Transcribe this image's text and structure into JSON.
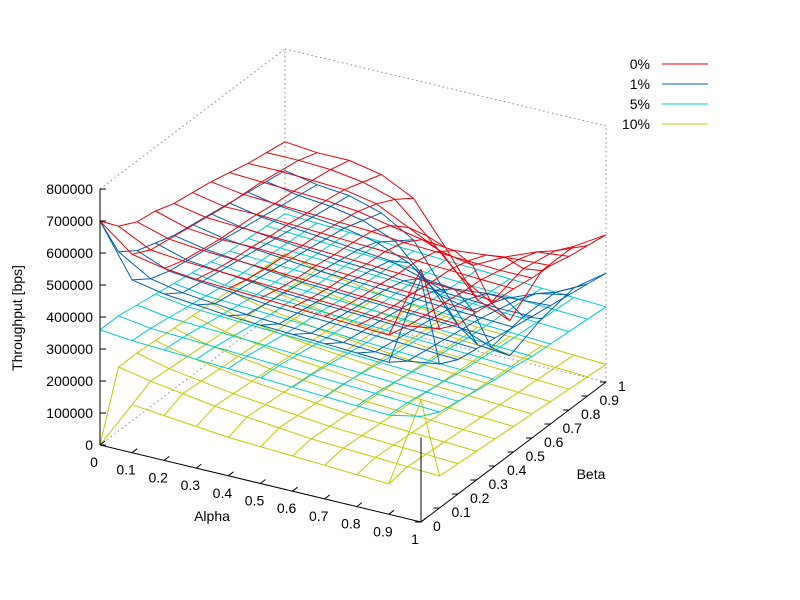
{
  "chart_data": {
    "type": "surface",
    "title": "",
    "xlabel": "Alpha",
    "ylabel": "Beta",
    "zlabel": "Throughput [bps]",
    "x_ticks": [
      "0",
      "0.1",
      "0.2",
      "0.3",
      "0.4",
      "0.5",
      "0.6",
      "0.7",
      "0.8",
      "0.9",
      "1"
    ],
    "y_ticks": [
      "0",
      "0.1",
      "0.2",
      "0.3",
      "0.4",
      "0.5",
      "0.6",
      "0.7",
      "0.8",
      "0.9",
      "1"
    ],
    "z_ticks": [
      "0",
      "100000",
      "200000",
      "300000",
      "400000",
      "500000",
      "600000",
      "700000",
      "800000"
    ],
    "xlim": [
      0,
      1
    ],
    "ylim": [
      0,
      1
    ],
    "zlim": [
      0,
      800000
    ],
    "grid": true,
    "legend_position": "top-right",
    "x": [
      0,
      0.1,
      0.2,
      0.3,
      0.4,
      0.5,
      0.6,
      0.7,
      0.8,
      0.9,
      1
    ],
    "y": [
      0,
      0.1,
      0.2,
      0.3,
      0.4,
      0.5,
      0.6,
      0.7,
      0.8,
      0.9,
      1
    ],
    "series": [
      {
        "name": "0%",
        "color": "#e8000b",
        "z_base": 560000,
        "z": [
          [
            700000,
            640000,
            610000,
            600000,
            580000,
            570000,
            560000,
            545000,
            530000,
            520000,
            510000
          ],
          [
            620000,
            590000,
            580000,
            570000,
            560000,
            550000,
            545000,
            540000,
            530000,
            520000,
            500000
          ],
          [
            600000,
            580000,
            570000,
            560000,
            555000,
            550000,
            540000,
            535000,
            525000,
            515000,
            500000
          ],
          [
            590000,
            575000,
            565000,
            560000,
            550000,
            545000,
            535000,
            530000,
            520000,
            500000,
            480000
          ],
          [
            585000,
            570000,
            560000,
            555000,
            545000,
            540000,
            530000,
            520000,
            500000,
            470000,
            430000
          ],
          [
            580000,
            565000,
            555000,
            550000,
            540000,
            535000,
            525000,
            500000,
            450000,
            380000,
            300000
          ],
          [
            575000,
            560000,
            550000,
            545000,
            535000,
            530000,
            515000,
            480000,
            400000,
            280000,
            160000
          ],
          [
            570000,
            555000,
            545000,
            540000,
            530000,
            525000,
            510000,
            470000,
            380000,
            220000,
            120000
          ],
          [
            565000,
            550000,
            540000,
            535000,
            525000,
            520000,
            505000,
            480000,
            430000,
            350000,
            300000
          ],
          [
            560000,
            545000,
            535000,
            530000,
            520000,
            515000,
            500000,
            490000,
            470000,
            430000,
            400000
          ],
          [
            790000,
            560000,
            530000,
            525000,
            515000,
            510000,
            500000,
            495000,
            480000,
            470000,
            460000
          ]
        ]
      },
      {
        "name": "1%",
        "color": "#0060ad",
        "z": [
          [
            700000,
            560000,
            520000,
            500000,
            480000,
            470000,
            460000,
            450000,
            440000,
            430000,
            420000
          ],
          [
            540000,
            500000,
            480000,
            470000,
            460000,
            450000,
            440000,
            430000,
            420000,
            410000,
            400000
          ],
          [
            520000,
            480000,
            470000,
            460000,
            450000,
            440000,
            430000,
            420000,
            410000,
            400000,
            390000
          ],
          [
            510000,
            470000,
            460000,
            450000,
            440000,
            430000,
            420000,
            410000,
            400000,
            380000,
            360000
          ],
          [
            500000,
            460000,
            450000,
            440000,
            430000,
            420000,
            410000,
            400000,
            380000,
            340000,
            300000
          ],
          [
            495000,
            455000,
            445000,
            435000,
            425000,
            415000,
            405000,
            390000,
            340000,
            240000,
            160000
          ],
          [
            490000,
            450000,
            440000,
            430000,
            420000,
            410000,
            395000,
            360000,
            260000,
            120000,
            20000
          ],
          [
            485000,
            445000,
            435000,
            425000,
            415000,
            405000,
            390000,
            350000,
            240000,
            80000,
            10000
          ],
          [
            480000,
            440000,
            430000,
            420000,
            410000,
            400000,
            385000,
            360000,
            300000,
            200000,
            150000
          ],
          [
            475000,
            435000,
            425000,
            415000,
            405000,
            395000,
            380000,
            365000,
            340000,
            300000,
            270000
          ],
          [
            760000,
            450000,
            420000,
            410000,
            400000,
            390000,
            380000,
            370000,
            360000,
            350000,
            340000
          ]
        ]
      },
      {
        "name": "5%",
        "color": "#00cccc",
        "z": [
          [
            360000,
            360000,
            350000,
            340000,
            330000,
            320000,
            310000,
            300000,
            295000,
            290000,
            285000
          ],
          [
            350000,
            345000,
            335000,
            325000,
            315000,
            305000,
            300000,
            295000,
            290000,
            285000,
            280000
          ],
          [
            345000,
            340000,
            330000,
            320000,
            310000,
            300000,
            295000,
            290000,
            285000,
            280000,
            275000
          ],
          [
            340000,
            335000,
            325000,
            315000,
            305000,
            300000,
            290000,
            285000,
            280000,
            275000,
            270000
          ],
          [
            335000,
            330000,
            320000,
            310000,
            300000,
            295000,
            285000,
            280000,
            275000,
            270000,
            265000
          ],
          [
            330000,
            325000,
            315000,
            305000,
            295000,
            290000,
            280000,
            275000,
            270000,
            265000,
            260000
          ],
          [
            325000,
            320000,
            310000,
            300000,
            290000,
            285000,
            275000,
            270000,
            265000,
            260000,
            255000
          ],
          [
            320000,
            315000,
            305000,
            295000,
            285000,
            280000,
            270000,
            265000,
            260000,
            255000,
            250000
          ],
          [
            315000,
            310000,
            300000,
            290000,
            280000,
            275000,
            265000,
            260000,
            255000,
            250000,
            245000
          ],
          [
            310000,
            305000,
            295000,
            285000,
            275000,
            270000,
            260000,
            255000,
            250000,
            245000,
            240000
          ],
          [
            330000,
            300000,
            290000,
            280000,
            270000,
            265000,
            255000,
            250000,
            245000,
            240000,
            235000
          ]
        ]
      },
      {
        "name": "10%",
        "color": "#c8c800",
        "z": [
          [
            0,
            200000,
            200000,
            195000,
            190000,
            185000,
            180000,
            175000,
            170000,
            165000,
            160000
          ],
          [
            150000,
            180000,
            175000,
            170000,
            165000,
            160000,
            155000,
            150000,
            145000,
            140000,
            135000
          ],
          [
            140000,
            165000,
            160000,
            155000,
            150000,
            145000,
            140000,
            135000,
            130000,
            125000,
            120000
          ],
          [
            130000,
            150000,
            145000,
            140000,
            135000,
            130000,
            125000,
            120000,
            115000,
            110000,
            105000
          ],
          [
            120000,
            140000,
            135000,
            130000,
            125000,
            120000,
            115000,
            110000,
            105000,
            100000,
            95000
          ],
          [
            115000,
            130000,
            125000,
            120000,
            115000,
            110000,
            105000,
            100000,
            95000,
            90000,
            85000
          ],
          [
            110000,
            120000,
            115000,
            110000,
            105000,
            100000,
            95000,
            90000,
            85000,
            80000,
            75000
          ],
          [
            105000,
            115000,
            110000,
            105000,
            100000,
            95000,
            90000,
            85000,
            80000,
            75000,
            70000
          ],
          [
            100000,
            110000,
            105000,
            100000,
            95000,
            90000,
            85000,
            80000,
            75000,
            70000,
            65000
          ],
          [
            95000,
            105000,
            100000,
            95000,
            90000,
            85000,
            80000,
            75000,
            70000,
            65000,
            60000
          ],
          [
            380000,
            100000,
            95000,
            90000,
            85000,
            80000,
            75000,
            70000,
            65000,
            60000,
            55000
          ]
        ]
      }
    ]
  }
}
